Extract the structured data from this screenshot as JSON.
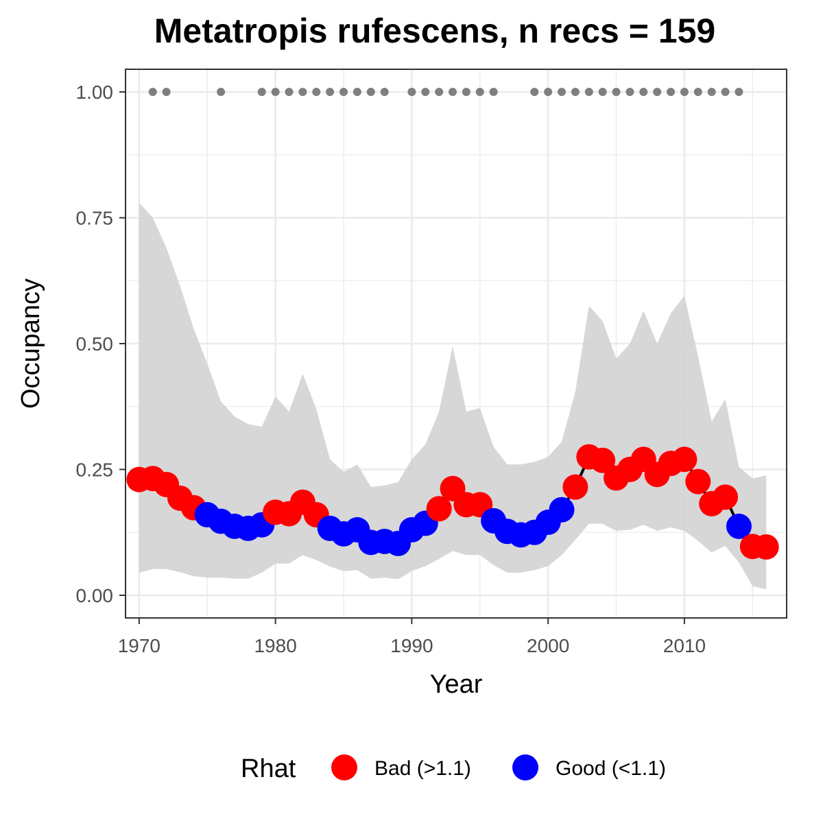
{
  "chart_data": {
    "type": "line",
    "title": "Metatropis rufescens, n recs = 159",
    "xlabel": "Year",
    "ylabel": "Occupancy",
    "xlim": [
      1969,
      2017.5
    ],
    "ylim": [
      -0.045,
      1.045
    ],
    "x_ticks": [
      1970,
      1980,
      1990,
      2000,
      2010
    ],
    "x_tick_labels": [
      "1970",
      "1980",
      "1990",
      "2000",
      "2010"
    ],
    "y_ticks": [
      0,
      0.25,
      0.5,
      0.75,
      1.0
    ],
    "y_tick_labels": [
      "0.00",
      "0.25",
      "0.50",
      "0.75",
      "1.00"
    ],
    "grid": true,
    "colors": {
      "bad": "#ff0000",
      "good": "#0000ff",
      "ribbon": "#d3d3d3",
      "line": "#000000",
      "records": "#7f7f7f",
      "grid": "#ebebeb"
    },
    "legend": {
      "title": "Rhat",
      "position": "bottom",
      "items": [
        {
          "key": "bad",
          "label": "Bad (>1.1)"
        },
        {
          "key": "good",
          "label": "Good (<1.1)"
        }
      ]
    },
    "years": [
      1970,
      1971,
      1972,
      1973,
      1974,
      1975,
      1976,
      1977,
      1978,
      1979,
      1980,
      1981,
      1982,
      1983,
      1984,
      1985,
      1986,
      1987,
      1988,
      1989,
      1990,
      1991,
      1992,
      1993,
      1994,
      1995,
      1996,
      1997,
      1998,
      1999,
      2000,
      2001,
      2002,
      2003,
      2004,
      2005,
      2006,
      2007,
      2008,
      2009,
      2010,
      2011,
      2012,
      2013,
      2014,
      2015,
      2016
    ],
    "occupancy": [
      0.23,
      0.232,
      0.22,
      0.193,
      0.174,
      0.16,
      0.147,
      0.137,
      0.133,
      0.14,
      0.165,
      0.162,
      0.185,
      0.16,
      0.133,
      0.122,
      0.13,
      0.105,
      0.107,
      0.103,
      0.13,
      0.143,
      0.172,
      0.212,
      0.18,
      0.18,
      0.148,
      0.127,
      0.12,
      0.125,
      0.145,
      0.17,
      0.215,
      0.275,
      0.268,
      0.233,
      0.25,
      0.27,
      0.24,
      0.262,
      0.27,
      0.226,
      0.182,
      0.195,
      0.137,
      0.097,
      0.096
    ],
    "rhat_status": [
      "bad",
      "bad",
      "bad",
      "bad",
      "bad",
      "good",
      "good",
      "good",
      "good",
      "good",
      "bad",
      "bad",
      "bad",
      "bad",
      "good",
      "good",
      "good",
      "good",
      "good",
      "good",
      "good",
      "good",
      "bad",
      "bad",
      "bad",
      "bad",
      "good",
      "good",
      "good",
      "good",
      "good",
      "good",
      "bad",
      "bad",
      "bad",
      "bad",
      "bad",
      "bad",
      "bad",
      "bad",
      "bad",
      "bad",
      "bad",
      "bad",
      "good",
      "bad",
      "bad"
    ],
    "lower_ci": [
      0.045,
      0.052,
      0.052,
      0.046,
      0.038,
      0.035,
      0.035,
      0.033,
      0.033,
      0.045,
      0.063,
      0.063,
      0.08,
      0.07,
      0.057,
      0.048,
      0.05,
      0.033,
      0.035,
      0.032,
      0.048,
      0.058,
      0.072,
      0.088,
      0.08,
      0.08,
      0.06,
      0.045,
      0.045,
      0.05,
      0.058,
      0.08,
      0.11,
      0.142,
      0.142,
      0.128,
      0.13,
      0.14,
      0.128,
      0.135,
      0.128,
      0.108,
      0.085,
      0.098,
      0.065,
      0.018,
      0.012
    ],
    "upper_ci": [
      0.78,
      0.75,
      0.69,
      0.615,
      0.53,
      0.46,
      0.385,
      0.355,
      0.34,
      0.335,
      0.395,
      0.365,
      0.44,
      0.37,
      0.27,
      0.245,
      0.26,
      0.215,
      0.218,
      0.225,
      0.27,
      0.3,
      0.365,
      0.495,
      0.365,
      0.372,
      0.295,
      0.26,
      0.26,
      0.265,
      0.275,
      0.305,
      0.405,
      0.575,
      0.545,
      0.47,
      0.5,
      0.565,
      0.5,
      0.56,
      0.595,
      0.475,
      0.345,
      0.39,
      0.255,
      0.232,
      0.238
    ],
    "record_years": [
      1971,
      1972,
      1976,
      1979,
      1980,
      1981,
      1982,
      1983,
      1984,
      1985,
      1986,
      1987,
      1988,
      1990,
      1991,
      1992,
      1993,
      1994,
      1995,
      1996,
      1999,
      2000,
      2001,
      2002,
      2003,
      2004,
      2005,
      2006,
      2007,
      2008,
      2009,
      2010,
      2011,
      2012,
      2013,
      2014
    ],
    "record_value": 1.0
  }
}
